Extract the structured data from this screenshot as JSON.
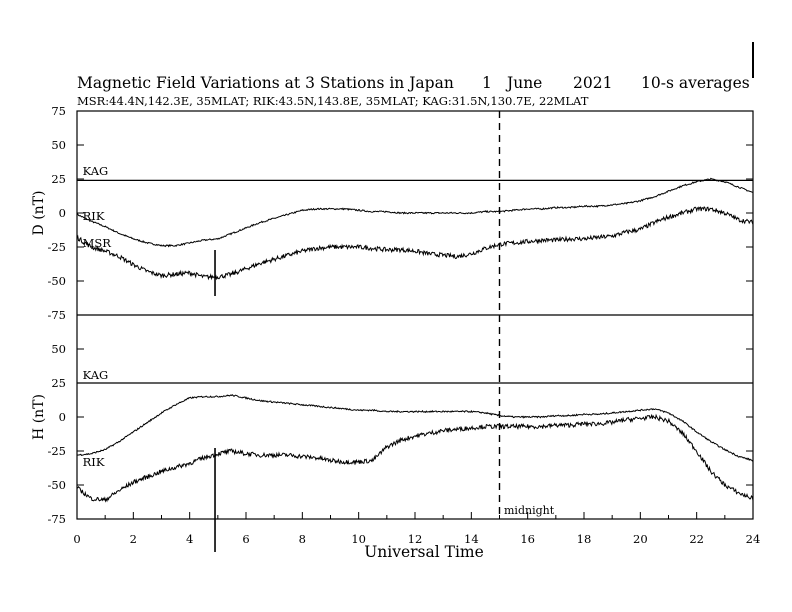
{
  "chart_data": {
    "type": "line",
    "title": "Magnetic Field Variations at 3 Stations in Japan",
    "date_day": "1",
    "date_month": "June",
    "date_year": "2021",
    "averaging": "10-s averages",
    "stations_line": "MSR:44.4N,142.3E, 35MLAT;  RIK:43.5N,143.8E, 35MLAT;  KAG:31.5N,130.7E, 22MLAT",
    "xlabel": "Universal Time",
    "xlim": [
      0,
      24
    ],
    "x_ticks": [
      "0",
      "2",
      "4",
      "6",
      "8",
      "10",
      "12",
      "14",
      "16",
      "18",
      "20",
      "22",
      "24"
    ],
    "midnight_ut": 15,
    "midnight_label": "midnight",
    "event_marker_ut": 4.9,
    "panels": [
      {
        "id": "D",
        "ylabel": "D (nT)",
        "ylim": [
          -75,
          75
        ],
        "y_ticks": [
          "75",
          "50",
          "25",
          "0",
          "-25",
          "-50",
          "-75"
        ],
        "station_labels": [
          {
            "text": "KAG",
            "x": 0.2,
            "y": 28
          },
          {
            "text": "RIK",
            "x": 0.2,
            "y": -5
          },
          {
            "text": "MSR",
            "x": 0.2,
            "y": -25
          }
        ],
        "series": [
          {
            "name": "KAG",
            "x": [
              0,
              24
            ],
            "y": [
              24,
              24
            ]
          },
          {
            "name": "RIK",
            "x": [
              0,
              0.5,
              1,
              1.5,
              2,
              2.5,
              3,
              3.5,
              4,
              4.5,
              5,
              5.5,
              6,
              6.5,
              7,
              7.5,
              8,
              8.5,
              9,
              9.5,
              10,
              10.5,
              11,
              11.5,
              12,
              12.5,
              13,
              13.5,
              14,
              14.5,
              15,
              15.5,
              16,
              16.5,
              17,
              17.5,
              18,
              18.5,
              19,
              19.5,
              20,
              20.5,
              21,
              21.5,
              22,
              22.5,
              23,
              23.5,
              24
            ],
            "y": [
              -1,
              -6,
              -10,
              -15,
              -19,
              -22,
              -24,
              -24,
              -22,
              -20,
              -19,
              -15,
              -11,
              -7,
              -4,
              -1,
              2,
              3,
              3,
              3,
              2,
              1,
              1,
              0,
              0,
              0,
              0,
              0,
              0,
              1,
              1,
              2,
              3,
              3,
              4,
              4,
              5,
              5,
              6,
              7,
              9,
              12,
              16,
              20,
              23,
              25,
              23,
              19,
              15
            ]
          },
          {
            "name": "MSR",
            "x": [
              0,
              0.5,
              1,
              1.5,
              2,
              2.5,
              3,
              3.5,
              4,
              4.5,
              5,
              5.5,
              6,
              6.5,
              7,
              7.5,
              8,
              8.5,
              9,
              9.5,
              10,
              10.5,
              11,
              11.5,
              12,
              12.5,
              13,
              13.5,
              14,
              14.5,
              15,
              15.5,
              16,
              16.5,
              17,
              17.5,
              18,
              18.5,
              19,
              19.5,
              20,
              20.5,
              21,
              21.5,
              22,
              22.5,
              23,
              23.5,
              24
            ],
            "y": [
              -18,
              -25,
              -28,
              -32,
              -38,
              -43,
              -46,
              -45,
              -44,
              -47,
              -47,
              -45,
              -41,
              -37,
              -34,
              -31,
              -28,
              -26,
              -25,
              -25,
              -25,
              -26,
              -27,
              -27,
              -28,
              -30,
              -31,
              -32,
              -30,
              -26,
              -23,
              -22,
              -21,
              -20,
              -20,
              -19,
              -19,
              -18,
              -17,
              -14,
              -12,
              -7,
              -3,
              0,
              3,
              3,
              0,
              -5,
              -7
            ]
          }
        ]
      },
      {
        "id": "H",
        "ylabel": "H (nT)",
        "ylim": [
          -75,
          75
        ],
        "y_ticks": [
          "75",
          "50",
          "25",
          "0",
          "-25",
          "-50",
          "-75"
        ],
        "station_labels": [
          {
            "text": "KAG",
            "x": 0.2,
            "y": 28
          },
          {
            "text": "RIK",
            "x": 0.2,
            "y": -36
          }
        ],
        "series": [
          {
            "name": "KAG",
            "x": [
              0,
              24
            ],
            "y": [
              25,
              25
            ]
          },
          {
            "name": "RIK",
            "x": [
              0,
              0.5,
              1,
              1.5,
              2,
              2.5,
              3,
              3.5,
              4,
              4.5,
              5,
              5.5,
              6,
              6.5,
              7,
              7.5,
              8,
              8.5,
              9,
              9.5,
              10,
              10.5,
              11,
              11.5,
              12,
              12.5,
              13,
              13.5,
              14,
              14.5,
              15,
              15.5,
              16,
              16.5,
              17,
              17.5,
              18,
              18.5,
              19,
              19.5,
              20,
              20.5,
              21,
              21.5,
              22,
              22.5,
              23,
              23.5,
              24
            ],
            "y": [
              -28,
              -27,
              -24,
              -18,
              -11,
              -4,
              3,
              9,
              14,
              15,
              15,
              16,
              14,
              12,
              11,
              10,
              9,
              8,
              7,
              6,
              5,
              5,
              4,
              4,
              4,
              4,
              4,
              4,
              4,
              3,
              1,
              0,
              0,
              0,
              1,
              1,
              2,
              2,
              3,
              4,
              5,
              6,
              3,
              -3,
              -11,
              -18,
              -24,
              -29,
              -32
            ]
          },
          {
            "name": "MSR",
            "x": [
              0,
              0.5,
              1,
              1.5,
              2,
              2.5,
              3,
              3.5,
              4,
              4.5,
              5,
              5.5,
              6,
              6.5,
              7,
              7.5,
              8,
              8.5,
              9,
              9.5,
              10,
              10.5,
              11,
              11.5,
              12,
              12.5,
              13,
              13.5,
              14,
              14.5,
              15,
              15.5,
              16,
              16.5,
              17,
              17.5,
              18,
              18.5,
              19,
              19.5,
              20,
              20.5,
              21,
              21.5,
              22,
              22.5,
              23,
              23.5,
              24
            ],
            "y": [
              -52,
              -60,
              -61,
              -54,
              -48,
              -44,
              -40,
              -37,
              -34,
              -30,
              -27,
              -25,
              -27,
              -28,
              -28,
              -28,
              -29,
              -30,
              -32,
              -33,
              -33,
              -32,
              -22,
              -17,
              -14,
              -12,
              -10,
              -9,
              -8,
              -7,
              -7,
              -7,
              -7,
              -7,
              -6,
              -6,
              -5,
              -5,
              -4,
              -2,
              -1,
              0,
              -3,
              -12,
              -25,
              -40,
              -50,
              -56,
              -60
            ]
          }
        ]
      }
    ]
  }
}
